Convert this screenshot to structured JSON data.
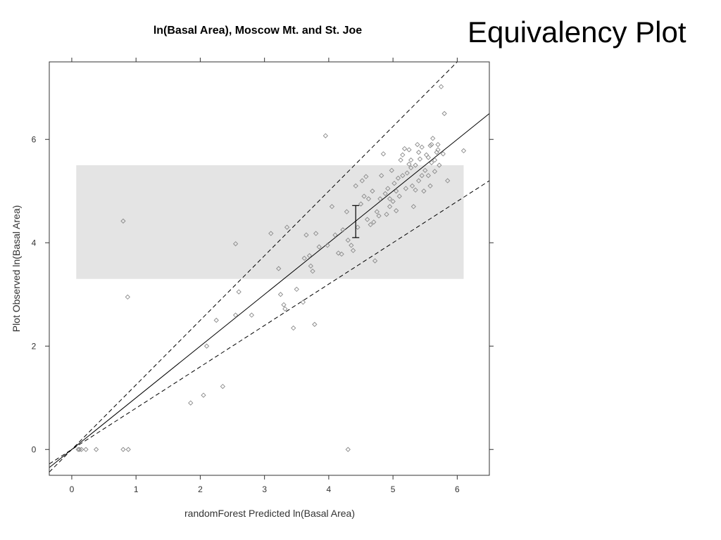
{
  "slide": {
    "title": "Equivalency Plot"
  },
  "chart_data": {
    "type": "scatter",
    "title": "ln(Basal Area), Moscow Mt. and St. Joe",
    "xlabel": "randomForest Predicted ln(Basal Area)",
    "ylabel": "Plot Observed ln(Basal Area)",
    "xlim": [
      -0.35,
      6.5
    ],
    "ylim": [
      -0.5,
      7.5
    ],
    "x_ticks": [
      0,
      1,
      2,
      3,
      4,
      5,
      6
    ],
    "y_ticks": [
      0,
      2,
      4,
      6
    ],
    "x_tick_labels": [
      "0",
      "1",
      "2",
      "3",
      "4",
      "5",
      "6"
    ],
    "y_tick_labels": [
      "0",
      "2",
      "4",
      "6"
    ],
    "grid": false,
    "colors": {
      "region": "#e4e4e4",
      "points": "#8a8a8a",
      "lines": "#000000",
      "frame": "#333333"
    },
    "equivalence_region": {
      "x": [
        0.07,
        6.1
      ],
      "y": [
        3.3,
        5.5
      ]
    },
    "interval_bar": {
      "x": 4.42,
      "y_low": 4.1,
      "y_high": 4.72
    },
    "lines": [
      {
        "style": "solid",
        "slope": 1.0,
        "intercept": 0.0
      },
      {
        "style": "dashed",
        "slope": 1.25,
        "intercept": 0.0
      },
      {
        "style": "dashed",
        "slope": 0.8,
        "intercept": 0.0
      }
    ],
    "points": [
      [
        0.1,
        0.0
      ],
      [
        0.12,
        0.0
      ],
      [
        0.15,
        0.0
      ],
      [
        0.22,
        0.0
      ],
      [
        0.38,
        0.0
      ],
      [
        0.8,
        0.0
      ],
      [
        0.88,
        0.0
      ],
      [
        4.3,
        0.0
      ],
      [
        0.8,
        4.42
      ],
      [
        0.87,
        2.95
      ],
      [
        1.85,
        0.9
      ],
      [
        2.05,
        1.05
      ],
      [
        2.35,
        1.22
      ],
      [
        2.1,
        2.0
      ],
      [
        2.25,
        2.5
      ],
      [
        2.55,
        2.6
      ],
      [
        2.6,
        3.05
      ],
      [
        2.55,
        3.98
      ],
      [
        2.8,
        2.6
      ],
      [
        3.1,
        4.18
      ],
      [
        3.22,
        3.5
      ],
      [
        3.25,
        3.0
      ],
      [
        3.3,
        2.8
      ],
      [
        3.32,
        2.72
      ],
      [
        3.35,
        4.3
      ],
      [
        3.45,
        2.35
      ],
      [
        3.5,
        3.1
      ],
      [
        3.6,
        2.85
      ],
      [
        3.62,
        3.7
      ],
      [
        3.65,
        4.15
      ],
      [
        3.7,
        3.75
      ],
      [
        3.72,
        3.55
      ],
      [
        3.75,
        3.45
      ],
      [
        3.78,
        2.42
      ],
      [
        3.8,
        4.18
      ],
      [
        3.85,
        3.92
      ],
      [
        3.95,
        6.07
      ],
      [
        3.98,
        3.95
      ],
      [
        4.05,
        4.7
      ],
      [
        4.1,
        4.15
      ],
      [
        4.15,
        3.8
      ],
      [
        4.2,
        3.78
      ],
      [
        4.22,
        4.25
      ],
      [
        4.28,
        4.6
      ],
      [
        4.3,
        4.05
      ],
      [
        4.35,
        3.95
      ],
      [
        4.38,
        3.85
      ],
      [
        4.42,
        5.1
      ],
      [
        4.45,
        4.3
      ],
      [
        4.5,
        4.75
      ],
      [
        4.52,
        5.2
      ],
      [
        4.55,
        4.9
      ],
      [
        4.6,
        4.45
      ],
      [
        4.62,
        4.85
      ],
      [
        4.65,
        4.35
      ],
      [
        4.68,
        5.0
      ],
      [
        4.7,
        4.4
      ],
      [
        4.72,
        3.65
      ],
      [
        4.75,
        4.6
      ],
      [
        4.8,
        4.85
      ],
      [
        4.82,
        5.3
      ],
      [
        4.85,
        5.72
      ],
      [
        4.88,
        4.95
      ],
      [
        4.9,
        4.55
      ],
      [
        4.92,
        5.05
      ],
      [
        4.95,
        4.7
      ],
      [
        4.98,
        5.4
      ],
      [
        5.0,
        4.8
      ],
      [
        5.02,
        5.15
      ],
      [
        5.05,
        4.62
      ],
      [
        5.08,
        5.25
      ],
      [
        5.1,
        4.9
      ],
      [
        5.12,
        5.6
      ],
      [
        5.15,
        5.3
      ],
      [
        5.18,
        5.82
      ],
      [
        5.2,
        5.05
      ],
      [
        5.22,
        5.35
      ],
      [
        5.25,
        5.8
      ],
      [
        5.28,
        5.45
      ],
      [
        5.3,
        5.1
      ],
      [
        5.32,
        4.7
      ],
      [
        5.35,
        5.5
      ],
      [
        5.38,
        5.9
      ],
      [
        5.4,
        5.2
      ],
      [
        5.42,
        5.62
      ],
      [
        5.45,
        5.85
      ],
      [
        5.48,
        5.0
      ],
      [
        5.5,
        5.4
      ],
      [
        5.52,
        5.7
      ],
      [
        5.55,
        5.3
      ],
      [
        5.58,
        5.88
      ],
      [
        5.6,
        5.55
      ],
      [
        5.62,
        6.02
      ],
      [
        5.65,
        5.6
      ],
      [
        5.68,
        5.75
      ],
      [
        5.7,
        5.9
      ],
      [
        5.72,
        5.5
      ],
      [
        5.75,
        7.02
      ],
      [
        5.78,
        5.72
      ],
      [
        5.8,
        6.5
      ],
      [
        5.85,
        5.2
      ],
      [
        6.1,
        5.78
      ],
      [
        5.35,
        5.02
      ],
      [
        5.58,
        5.1
      ],
      [
        5.45,
        5.3
      ],
      [
        5.65,
        5.38
      ],
      [
        5.6,
        5.9
      ],
      [
        5.28,
        5.6
      ],
      [
        5.05,
        5.0
      ],
      [
        4.95,
        4.85
      ],
      [
        5.15,
        5.7
      ],
      [
        5.25,
        5.52
      ],
      [
        5.4,
        5.75
      ],
      [
        5.55,
        5.65
      ],
      [
        5.7,
        5.8
      ],
      [
        4.78,
        4.52
      ],
      [
        4.58,
        5.28
      ]
    ]
  }
}
